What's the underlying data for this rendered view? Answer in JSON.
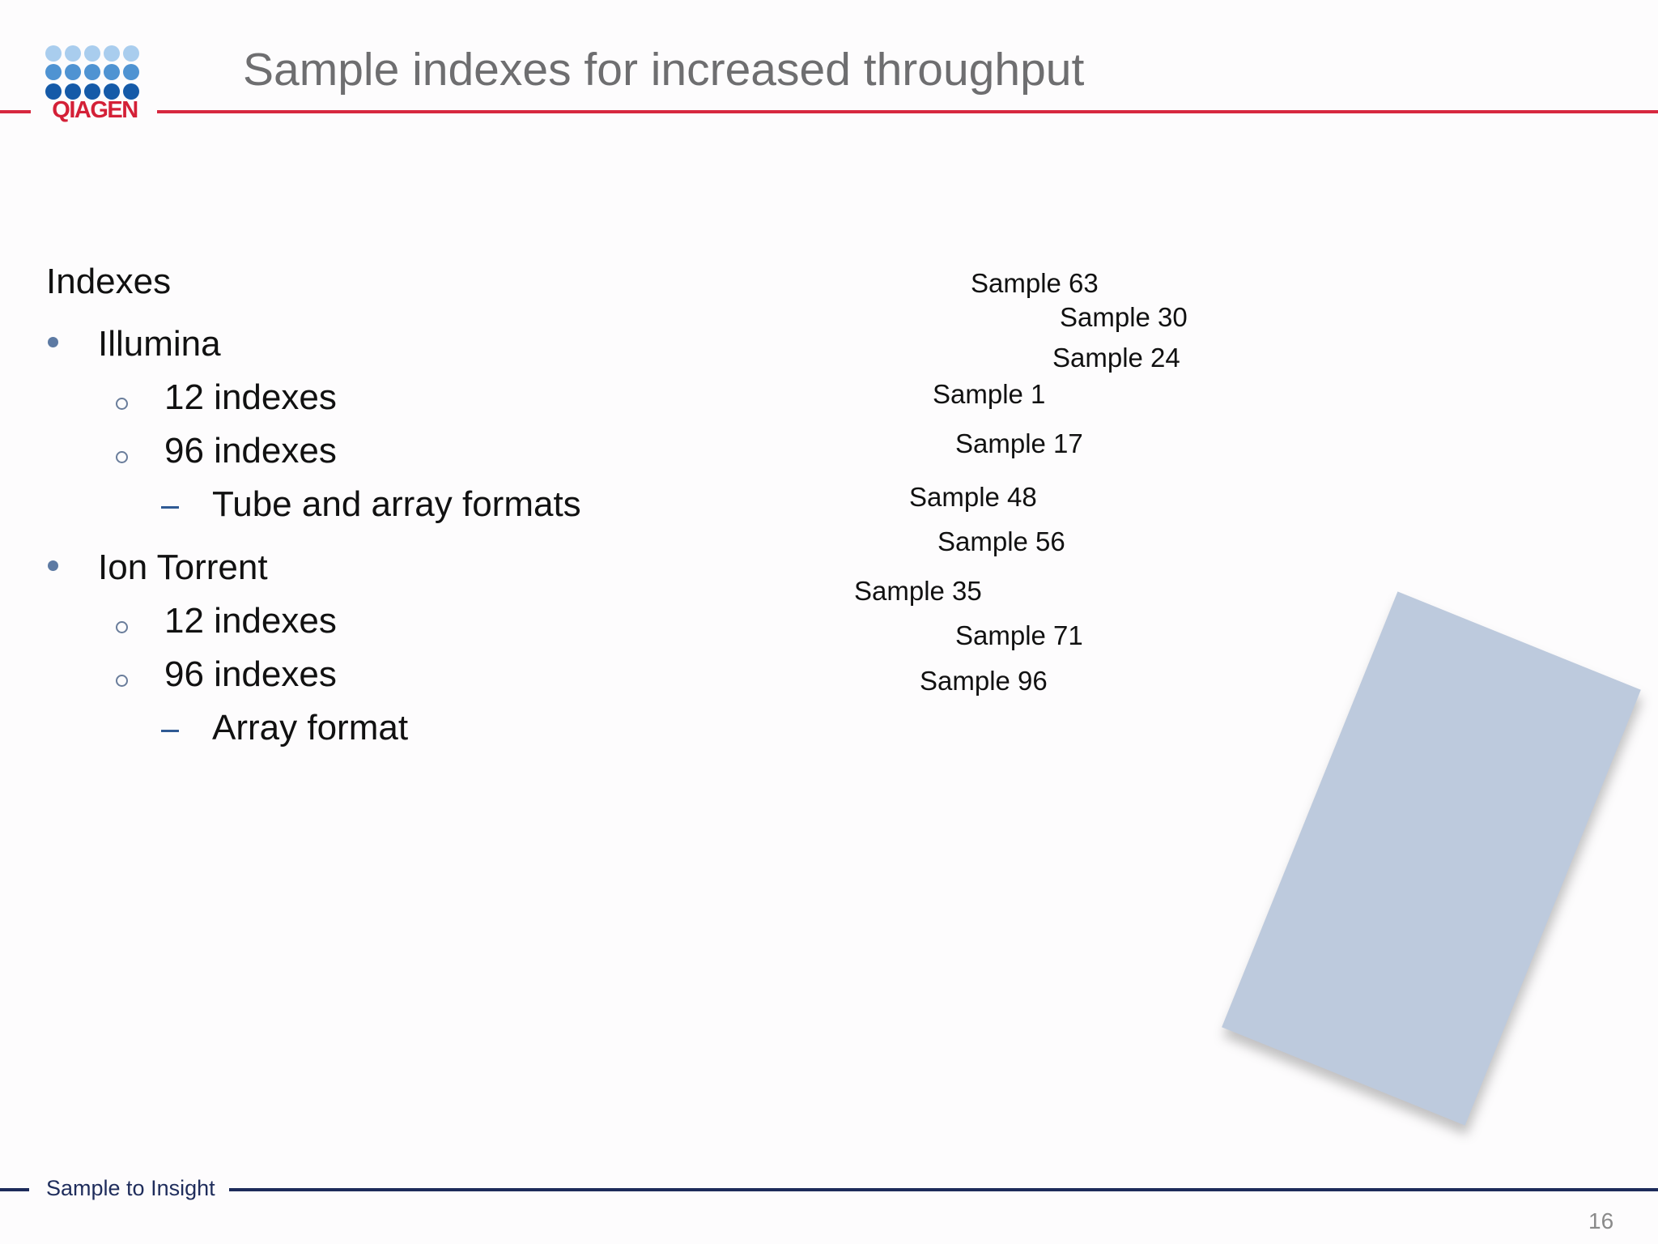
{
  "header": {
    "logo_text": "QIAGEN",
    "title": "Sample indexes for increased throughput"
  },
  "content": {
    "heading": "Indexes",
    "items": [
      {
        "label": "Illumina",
        "sub": [
          {
            "label": "12 indexes"
          },
          {
            "label": "96 indexes",
            "sub": [
              {
                "label": "Tube and array formats"
              }
            ]
          }
        ]
      },
      {
        "label": "Ion Torrent",
        "sub": [
          {
            "label": "12 indexes"
          },
          {
            "label": "96 indexes",
            "sub": [
              {
                "label": "Array format"
              }
            ]
          }
        ]
      }
    ]
  },
  "samples": [
    "Sample 63",
    "Sample 30",
    "Sample 24",
    "Sample 1",
    "Sample 17",
    "Sample 48",
    "Sample 56",
    "Sample 35",
    "Sample 71",
    "Sample 96"
  ],
  "footer": {
    "tagline": "Sample to Insight",
    "page_number": "16"
  },
  "colors": {
    "brand_red": "#d7283f",
    "brand_navy": "#1d2b5a",
    "title_gray": "#6e6e70",
    "card_blue": "#bdcadd"
  }
}
